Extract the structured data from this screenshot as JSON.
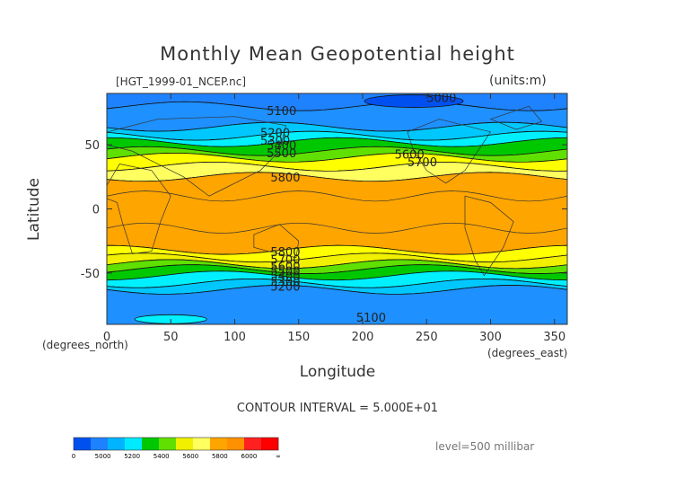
{
  "header": {
    "title": "Monthly Mean Geopotential height",
    "file": "[HGT_1999-01_NCEP.nc]",
    "units": "(units:m)"
  },
  "axes": {
    "ylabel": "Latitude",
    "xlabel": "Longitude",
    "x_unit": "(degrees_north)",
    "x_unit_right": "(degrees_east)"
  },
  "footer": {
    "contour_interval": "CONTOUR INTERVAL = 5.000E+01",
    "level": "level=500 millibar"
  },
  "chart_data": {
    "type": "heatmap",
    "title": "Monthly Mean Geopotential height",
    "xlabel": "Longitude",
    "ylabel": "Latitude",
    "xlim": [
      0,
      360
    ],
    "ylim": [
      -90,
      90
    ],
    "x_ticks": [
      0,
      50,
      100,
      150,
      200,
      250,
      300,
      350
    ],
    "y_ticks": [
      50,
      0,
      -50
    ],
    "contour_interval": 50,
    "colorbar": {
      "ticks": [
        "0",
        "5000",
        "5200",
        "5400",
        "5600",
        "5800",
        "6000",
        "∞"
      ],
      "colors": [
        "#0050f0",
        "#1e82ff",
        "#00b4ff",
        "#00eaff",
        "#00c800",
        "#60e000",
        "#f0f000",
        "#ffff60",
        "#ffa500",
        "#ff9000",
        "#ff2020",
        "#ff0000"
      ]
    },
    "bands": [
      {
        "lat_top": 90,
        "lat_bottom": 80,
        "value": 5050,
        "color": "#1e82ff"
      },
      {
        "lat_top": 80,
        "lat_bottom": 64,
        "value": 5150,
        "color": "#1e90ff"
      },
      {
        "lat_top": 64,
        "lat_bottom": 57,
        "value": 5250,
        "color": "#00c8ff"
      },
      {
        "lat_top": 57,
        "lat_bottom": 52,
        "value": 5350,
        "color": "#00f0ff"
      },
      {
        "lat_top": 52,
        "lat_bottom": 45,
        "value": 5450,
        "color": "#00c800"
      },
      {
        "lat_top": 45,
        "lat_bottom": 40,
        "value": 5550,
        "color": "#60e000"
      },
      {
        "lat_top": 40,
        "lat_bottom": 33,
        "value": 5650,
        "color": "#ffff00"
      },
      {
        "lat_top": 33,
        "lat_bottom": 25,
        "value": 5750,
        "color": "#ffff60"
      },
      {
        "lat_top": 25,
        "lat_bottom": -32,
        "value": 5850,
        "color": "#ffa500"
      },
      {
        "lat_top": -32,
        "lat_bottom": -38,
        "value": 5750,
        "color": "#ffff00"
      },
      {
        "lat_top": -38,
        "lat_bottom": -43,
        "value": 5650,
        "color": "#f0f000"
      },
      {
        "lat_top": -43,
        "lat_bottom": -47,
        "value": 5550,
        "color": "#60e000"
      },
      {
        "lat_top": -47,
        "lat_bottom": -52,
        "value": 5450,
        "color": "#00c800"
      },
      {
        "lat_top": -52,
        "lat_bottom": -58,
        "value": 5350,
        "color": "#00f0ff"
      },
      {
        "lat_top": -58,
        "lat_bottom": -63,
        "value": 5250,
        "color": "#00c8ff"
      },
      {
        "lat_top": -63,
        "lat_bottom": -90,
        "value": 5150,
        "color": "#1e90ff"
      }
    ],
    "contour_labels": [
      {
        "text": "5000",
        "lon": 250,
        "lat": 86
      },
      {
        "text": "5100",
        "lon": 125,
        "lat": 76
      },
      {
        "text": "5200",
        "lon": 120,
        "lat": 59
      },
      {
        "text": "5300",
        "lon": 120,
        "lat": 53
      },
      {
        "text": "5400",
        "lon": 125,
        "lat": 49
      },
      {
        "text": "5500",
        "lon": 125,
        "lat": 43
      },
      {
        "text": "5600",
        "lon": 225,
        "lat": 42
      },
      {
        "text": "5700",
        "lon": 235,
        "lat": 36
      },
      {
        "text": "5800",
        "lon": 128,
        "lat": 24
      },
      {
        "text": "5800",
        "lon": 128,
        "lat": -34
      },
      {
        "text": "5700",
        "lon": 128,
        "lat": -40
      },
      {
        "text": "5600",
        "lon": 128,
        "lat": -45
      },
      {
        "text": "5500",
        "lon": 128,
        "lat": -49
      },
      {
        "text": "5400",
        "lon": 128,
        "lat": -53
      },
      {
        "text": "5300",
        "lon": 128,
        "lat": -57
      },
      {
        "text": "5200",
        "lon": 128,
        "lat": -61
      },
      {
        "text": "5100",
        "lon": 195,
        "lat": -85
      }
    ]
  }
}
